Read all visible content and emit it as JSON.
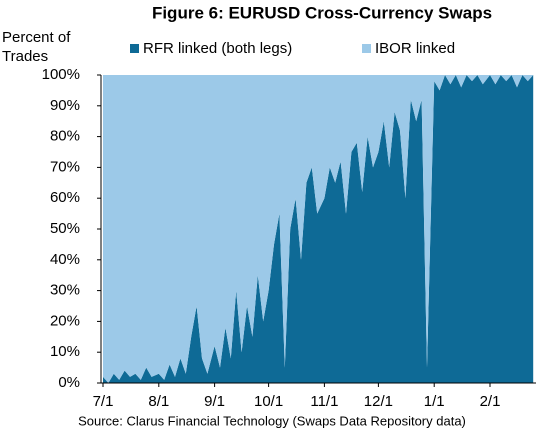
{
  "chart_data": {
    "type": "stacked_area",
    "title": "Figure 6: EURUSD Cross-Currency Swaps",
    "y_label": [
      "Percent of",
      "Trades"
    ],
    "source": "Source: Clarus Financial Technology (Swaps Data Repository data)",
    "x": [
      "7/1",
      "7/4",
      "7/7",
      "7/10",
      "7/13",
      "7/16",
      "7/19",
      "7/22",
      "7/25",
      "7/28",
      "8/1",
      "8/4",
      "8/7",
      "8/10",
      "8/13",
      "8/16",
      "8/19",
      "8/22",
      "8/25",
      "8/28",
      "9/1",
      "9/4",
      "9/7",
      "9/10",
      "9/13",
      "9/16",
      "9/19",
      "9/22",
      "9/25",
      "9/28",
      "10/1",
      "10/4",
      "10/7",
      "10/10",
      "10/13",
      "10/16",
      "10/19",
      "10/22",
      "10/25",
      "10/28",
      "11/1",
      "11/4",
      "11/7",
      "11/10",
      "11/13",
      "11/16",
      "11/19",
      "11/22",
      "11/25",
      "11/28",
      "12/1",
      "12/4",
      "12/7",
      "12/10",
      "12/13",
      "12/16",
      "12/19",
      "12/22",
      "12/25",
      "12/28",
      "1/1",
      "1/4",
      "1/7",
      "1/10",
      "1/13",
      "1/16",
      "1/19",
      "1/22",
      "1/25",
      "1/28",
      "2/1",
      "2/4",
      "2/7",
      "2/10",
      "2/13",
      "2/16",
      "2/19",
      "2/22",
      "2/25"
    ],
    "series": [
      {
        "name": "RFR linked (both legs)",
        "color": "#0e6a96",
        "values": [
          2,
          0,
          3,
          1,
          4,
          2,
          3,
          1,
          5,
          2,
          3,
          1,
          6,
          2,
          8,
          3,
          15,
          25,
          8,
          3,
          12,
          5,
          18,
          8,
          30,
          10,
          25,
          15,
          35,
          20,
          30,
          45,
          55,
          5,
          50,
          60,
          40,
          65,
          70,
          55,
          60,
          70,
          65,
          72,
          55,
          75,
          78,
          62,
          80,
          70,
          75,
          85,
          70,
          88,
          82,
          60,
          92,
          85,
          92,
          5,
          98,
          95,
          100,
          97,
          100,
          96,
          100,
          98,
          100,
          97,
          100,
          97,
          100,
          98,
          100,
          96,
          100,
          98,
          100
        ]
      },
      {
        "name": "IBOR linked",
        "color": "#9cc9e8",
        "values": [
          98,
          100,
          97,
          99,
          96,
          98,
          97,
          99,
          95,
          98,
          97,
          99,
          94,
          98,
          92,
          97,
          85,
          75,
          92,
          97,
          88,
          95,
          82,
          92,
          70,
          90,
          75,
          85,
          65,
          80,
          70,
          55,
          45,
          95,
          50,
          40,
          60,
          35,
          30,
          45,
          40,
          30,
          35,
          28,
          45,
          25,
          22,
          38,
          20,
          30,
          25,
          15,
          30,
          12,
          18,
          40,
          8,
          15,
          8,
          95,
          2,
          5,
          0,
          3,
          0,
          4,
          0,
          2,
          0,
          3,
          0,
          3,
          0,
          2,
          0,
          4,
          0,
          2,
          0
        ]
      }
    ],
    "ylim": [
      0,
      100
    ],
    "yticks": [
      {
        "value": 0,
        "label": "0%"
      },
      {
        "value": 10,
        "label": "10%"
      },
      {
        "value": 20,
        "label": "20%"
      },
      {
        "value": 30,
        "label": "30%"
      },
      {
        "value": 40,
        "label": "40%"
      },
      {
        "value": 50,
        "label": "50%"
      },
      {
        "value": 60,
        "label": "60%"
      },
      {
        "value": 70,
        "label": "70%"
      },
      {
        "value": 80,
        "label": "80%"
      },
      {
        "value": 90,
        "label": "90%"
      },
      {
        "value": 100,
        "label": "100%"
      }
    ],
    "xticks": [
      "7/1",
      "8/1",
      "9/1",
      "10/1",
      "11/1",
      "12/1",
      "1/1",
      "2/1"
    ]
  }
}
